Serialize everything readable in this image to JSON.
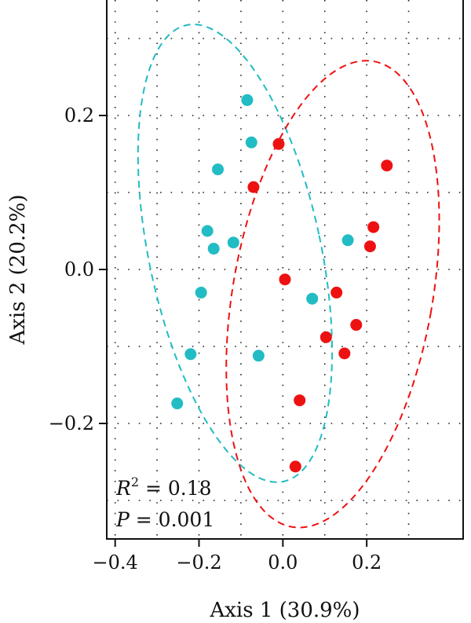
{
  "chart_data": {
    "type": "scatter",
    "xlabel": "Axis 1 (30.9%)",
    "ylabel": "Axis 2 (20.2%)",
    "xlim": [
      -0.42,
      0.43
    ],
    "ylim": [
      -0.35,
      0.35
    ],
    "xticks": [
      -0.4,
      -0.2,
      0.0,
      0.2
    ],
    "xtick_labels": [
      "−0.4",
      "−0.2",
      "0.0",
      "0.2"
    ],
    "yticks": [
      -0.2,
      0.0,
      0.2
    ],
    "ytick_labels": [
      "−0.2",
      "0.0",
      "0.2"
    ],
    "grid_x": [
      -0.4,
      -0.3,
      -0.2,
      -0.1,
      0.0,
      0.1,
      0.2,
      0.3
    ],
    "grid_y": [
      -0.3,
      -0.2,
      -0.1,
      0.0,
      0.1,
      0.2,
      0.3
    ],
    "grid": "dotted",
    "legend": "none",
    "annotation": {
      "r2_symbol": "R",
      "r2_superscript": "2",
      "r2_text": " = 0.18",
      "p_symbol": "P",
      "p_text": " = 0.001"
    },
    "series": [
      {
        "color": "#22bcc4",
        "ellipse": {
          "cx": -0.114,
          "cy": 0.021,
          "rx": 0.205,
          "ry": 0.303,
          "angle_deg": -12
        },
        "points": [
          [
            -0.085,
            0.22
          ],
          [
            -0.075,
            0.165
          ],
          [
            -0.155,
            0.13
          ],
          [
            -0.18,
            0.05
          ],
          [
            -0.165,
            0.027
          ],
          [
            -0.118,
            0.035
          ],
          [
            -0.195,
            -0.03
          ],
          [
            -0.22,
            -0.11
          ],
          [
            -0.252,
            -0.174
          ],
          [
            -0.058,
            -0.112
          ],
          [
            0.07,
            -0.038
          ],
          [
            0.155,
            0.038
          ]
        ]
      },
      {
        "color": "#ee1111",
        "ellipse": {
          "cx": 0.119,
          "cy": -0.032,
          "rx": 0.238,
          "ry": 0.307,
          "angle_deg": 10
        },
        "points": [
          [
            -0.01,
            0.163
          ],
          [
            -0.07,
            0.107
          ],
          [
            0.005,
            -0.013
          ],
          [
            0.248,
            0.135
          ],
          [
            0.216,
            0.055
          ],
          [
            0.208,
            0.03
          ],
          [
            0.128,
            -0.03
          ],
          [
            0.175,
            -0.072
          ],
          [
            0.103,
            -0.088
          ],
          [
            0.147,
            -0.109
          ],
          [
            0.04,
            -0.17
          ],
          [
            0.03,
            -0.256
          ]
        ]
      }
    ]
  }
}
